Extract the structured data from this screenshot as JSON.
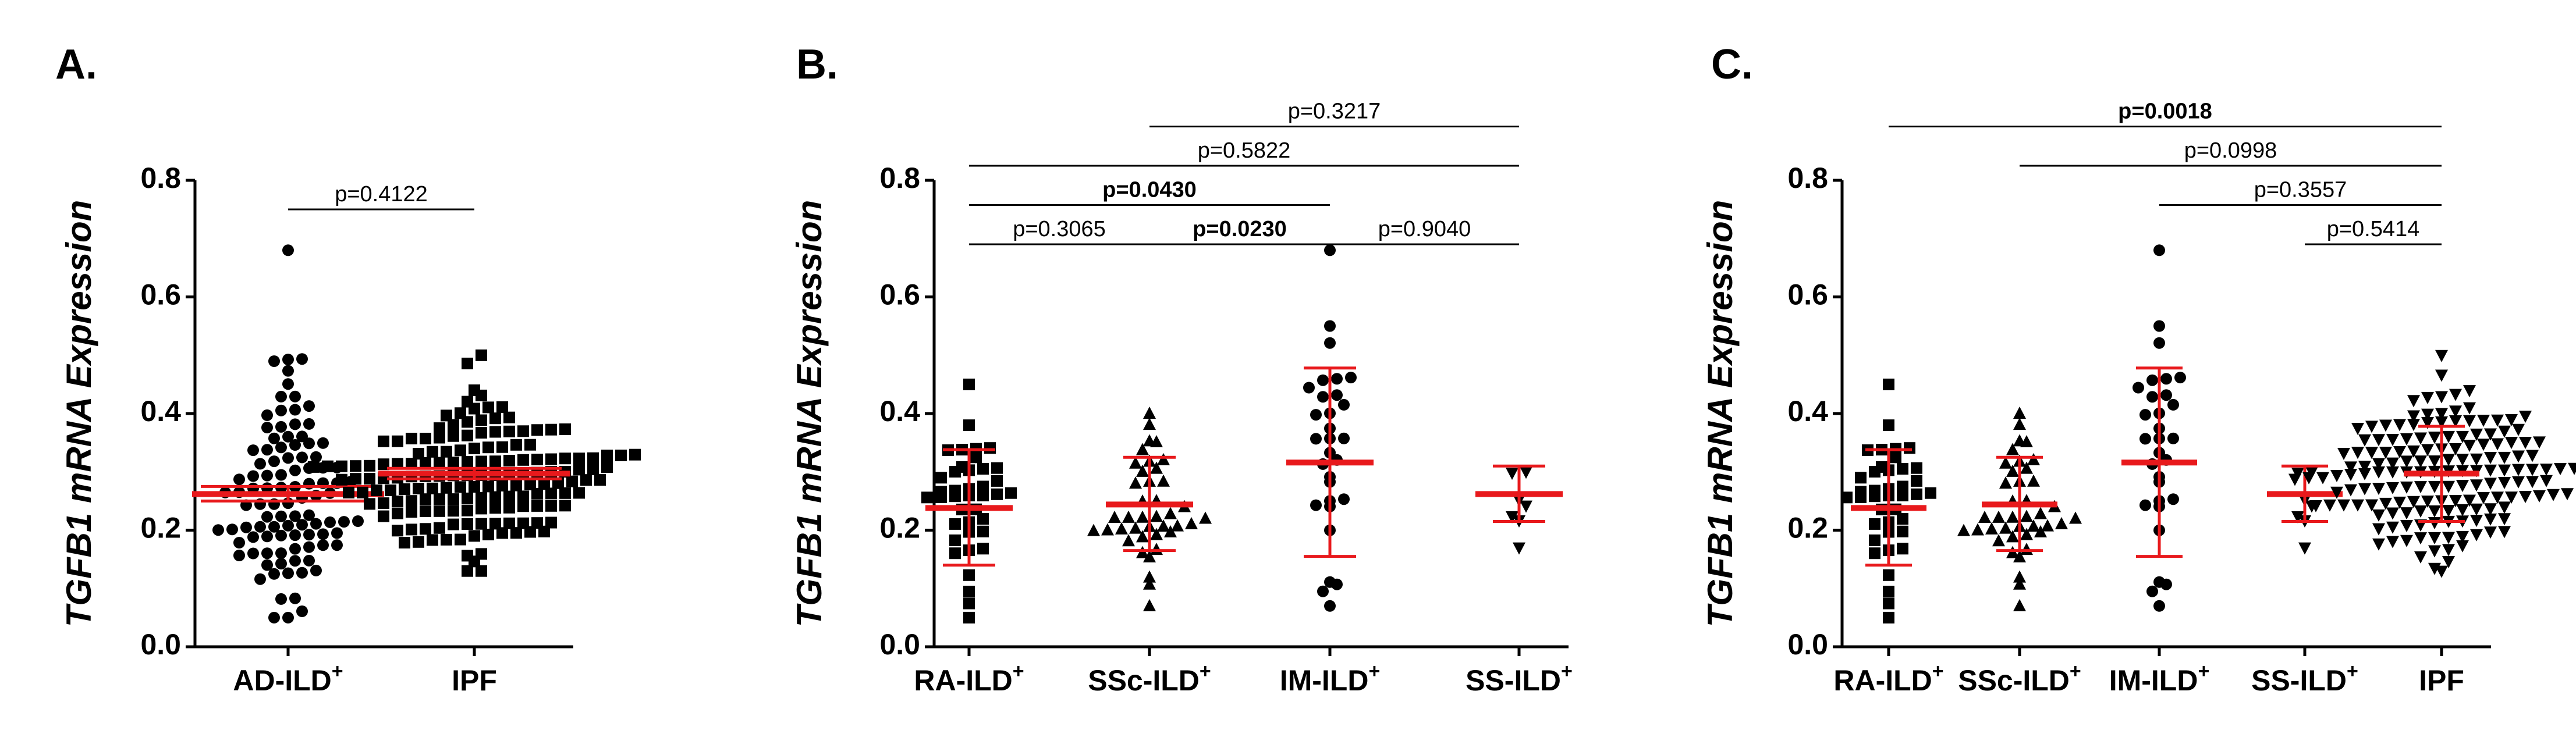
{
  "figure": {
    "y_axis_label": "TGFB1 mRNA Expression"
  },
  "colors": {
    "points": "#000000",
    "mean_bar": "#e8191c",
    "axis": "#000000"
  },
  "chart_data": [
    {
      "type": "scatter",
      "panel": "A.",
      "ylabel": "TGFB1 mRNA Expression",
      "ylim": [
        0,
        0.8
      ],
      "yticks": [
        "0.0",
        "0.2",
        "0.4",
        "0.6",
        "0.8"
      ],
      "groups": [
        {
          "label": "AD-ILD",
          "sup": "+",
          "marker": "circle",
          "n": 100,
          "min": 0.05,
          "max": 0.68,
          "mean": 0.262,
          "sd_low": 0.25,
          "sd_high": 0.275,
          "seed": 11
        },
        {
          "label": "IPF",
          "sup": "",
          "marker": "square",
          "n": 160,
          "min": 0.13,
          "max": 0.5,
          "mean": 0.297,
          "sd_low": 0.288,
          "sd_high": 0.306,
          "seed": 23
        }
      ],
      "comparisons": [
        {
          "from": 0,
          "to": 1,
          "text": "p=0.4122",
          "bold": false,
          "level": 0
        }
      ]
    },
    {
      "type": "scatter",
      "panel": "B.",
      "ylabel": "TGFB1 mRNA Expression",
      "ylim": [
        0,
        0.8
      ],
      "yticks": [
        "0.0",
        "0.2",
        "0.4",
        "0.6",
        "0.8"
      ],
      "groups": [
        {
          "label": "RA-ILD",
          "sup": "+",
          "marker": "square",
          "n": 40,
          "min": 0.05,
          "max": 0.45,
          "mean": 0.238,
          "sd_low": 0.14,
          "sd_high": 0.338,
          "seed": 31
        },
        {
          "label": "SSc-ILD",
          "sup": "+",
          "marker": "triangle-up",
          "n": 40,
          "min": 0.07,
          "max": 0.4,
          "mean": 0.244,
          "sd_low": 0.165,
          "sd_high": 0.325,
          "seed": 37
        },
        {
          "label": "IM-ILD",
          "sup": "+",
          "marker": "circle",
          "n": 30,
          "min": 0.07,
          "max": 0.68,
          "mean": 0.316,
          "sd_low": 0.155,
          "sd_high": 0.478,
          "seed": 41
        },
        {
          "label": "SS-ILD",
          "sup": "+",
          "marker": "triangle-down",
          "n": 7,
          "min": 0.17,
          "max": 0.3,
          "mean": 0.262,
          "sd_low": 0.215,
          "sd_high": 0.31,
          "seed": 43
        }
      ],
      "comparisons": [
        {
          "from": 0,
          "to": 1,
          "text": "p=0.3065",
          "bold": false,
          "level": 0
        },
        {
          "from": 1,
          "to": 2,
          "text": "p=0.0230",
          "bold": true,
          "level": 0
        },
        {
          "from": 2,
          "to": 3,
          "text": "p=0.9040",
          "bold": false,
          "level": 0
        },
        {
          "from": 0,
          "to": 2,
          "text": "p=0.0430",
          "bold": true,
          "level": 1
        },
        {
          "from": 0,
          "to": 3,
          "text": "p=0.5822",
          "bold": false,
          "level": 2
        },
        {
          "from": 1,
          "to": 3,
          "text": "p=0.3217",
          "bold": false,
          "level": 3
        }
      ]
    },
    {
      "type": "scatter",
      "panel": "C.",
      "ylabel": "TGFB1 mRNA Expression",
      "ylim": [
        0,
        0.8
      ],
      "yticks": [
        "0.0",
        "0.2",
        "0.4",
        "0.6",
        "0.8"
      ],
      "groups": [
        {
          "label": "RA-ILD",
          "sup": "+",
          "marker": "square",
          "n": 40,
          "min": 0.05,
          "max": 0.45,
          "mean": 0.238,
          "sd_low": 0.14,
          "sd_high": 0.338,
          "seed": 31
        },
        {
          "label": "SSc-ILD",
          "sup": "+",
          "marker": "triangle-up",
          "n": 40,
          "min": 0.07,
          "max": 0.4,
          "mean": 0.244,
          "sd_low": 0.165,
          "sd_high": 0.325,
          "seed": 37
        },
        {
          "label": "IM-ILD",
          "sup": "+",
          "marker": "circle",
          "n": 30,
          "min": 0.07,
          "max": 0.68,
          "mean": 0.316,
          "sd_low": 0.155,
          "sd_high": 0.478,
          "seed": 41
        },
        {
          "label": "SS-ILD",
          "sup": "+",
          "marker": "triangle-down",
          "n": 7,
          "min": 0.17,
          "max": 0.3,
          "mean": 0.262,
          "sd_low": 0.215,
          "sd_high": 0.31,
          "seed": 43
        },
        {
          "label": "IPF",
          "sup": "",
          "marker": "triangle-down",
          "n": 160,
          "min": 0.13,
          "max": 0.5,
          "mean": 0.297,
          "sd_low": 0.215,
          "sd_high": 0.378,
          "seed": 53
        }
      ],
      "comparisons": [
        {
          "from": 3,
          "to": 4,
          "text": "p=0.5414",
          "bold": false,
          "level": 0
        },
        {
          "from": 2,
          "to": 4,
          "text": "p=0.3557",
          "bold": false,
          "level": 1
        },
        {
          "from": 1,
          "to": 4,
          "text": "p=0.0998",
          "bold": false,
          "level": 2
        },
        {
          "from": 0,
          "to": 4,
          "text": "p=0.0018",
          "bold": true,
          "level": 3
        }
      ]
    }
  ]
}
